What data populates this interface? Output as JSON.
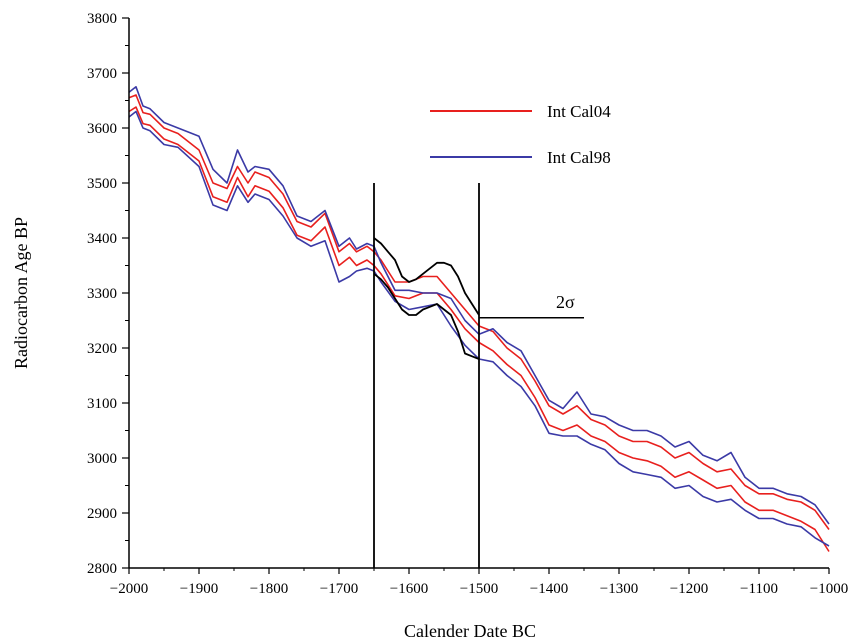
{
  "chart_data": {
    "type": "line",
    "title": "",
    "xlabel": "Calender Date BC",
    "ylabel": "Radiocarbon Age BP",
    "xlim": [
      -2000,
      -1000
    ],
    "ylim": [
      2800,
      3800
    ],
    "x_ticks": [
      "-2000",
      "-1900",
      "-1800",
      "-1700",
      "-1600",
      "-1500",
      "-1400",
      "-1300",
      "-1200",
      "-1100",
      "-1000"
    ],
    "y_ticks": [
      "2800",
      "2900",
      "3000",
      "3100",
      "3200",
      "3300",
      "3400",
      "3500",
      "3600",
      "3700",
      "3800"
    ],
    "legend_position": "top-center",
    "grid": false,
    "series": [
      {
        "name": "Int Cal04",
        "color": "#e8201e",
        "x": [
          -2000,
          -1990,
          -1980,
          -1970,
          -1950,
          -1930,
          -1900,
          -1880,
          -1860,
          -1845,
          -1830,
          -1820,
          -1800,
          -1780,
          -1760,
          -1740,
          -1720,
          -1700,
          -1685,
          -1675,
          -1660,
          -1650,
          -1640,
          -1620,
          -1600,
          -1580,
          -1560,
          -1540,
          -1520,
          -1500,
          -1480,
          -1460,
          -1440,
          -1420,
          -1400,
          -1380,
          -1360,
          -1340,
          -1320,
          -1300,
          -1280,
          -1260,
          -1240,
          -1220,
          -1200,
          -1180,
          -1160,
          -1140,
          -1120,
          -1100,
          -1080,
          -1060,
          -1040,
          -1020,
          -1000
        ],
        "upper": [
          3655,
          3660,
          3628,
          3625,
          3600,
          3590,
          3560,
          3500,
          3490,
          3530,
          3500,
          3520,
          3510,
          3480,
          3430,
          3420,
          3445,
          3375,
          3390,
          3375,
          3385,
          3375,
          3360,
          3320,
          3320,
          3330,
          3330,
          3300,
          3270,
          3240,
          3230,
          3200,
          3180,
          3140,
          3095,
          3080,
          3095,
          3070,
          3060,
          3040,
          3030,
          3030,
          3020,
          3000,
          3010,
          2990,
          2975,
          2980,
          2950,
          2935,
          2935,
          2925,
          2920,
          2905,
          2870
        ],
        "lower": [
          3630,
          3638,
          3608,
          3605,
          3580,
          3570,
          3540,
          3475,
          3465,
          3510,
          3475,
          3495,
          3485,
          3455,
          3405,
          3395,
          3420,
          3350,
          3365,
          3350,
          3360,
          3350,
          3335,
          3295,
          3290,
          3300,
          3300,
          3270,
          3235,
          3210,
          3195,
          3170,
          3150,
          3110,
          3060,
          3050,
          3060,
          3040,
          3030,
          3010,
          3000,
          2995,
          2985,
          2965,
          2975,
          2960,
          2945,
          2950,
          2920,
          2905,
          2905,
          2895,
          2885,
          2870,
          2830
        ]
      },
      {
        "name": "Int Cal98",
        "color": "#3b3aa6",
        "x": [
          -2000,
          -1990,
          -1980,
          -1970,
          -1950,
          -1930,
          -1900,
          -1880,
          -1860,
          -1845,
          -1830,
          -1820,
          -1800,
          -1780,
          -1760,
          -1740,
          -1720,
          -1700,
          -1685,
          -1675,
          -1660,
          -1650,
          -1640,
          -1620,
          -1600,
          -1580,
          -1560,
          -1540,
          -1520,
          -1500,
          -1480,
          -1460,
          -1440,
          -1420,
          -1400,
          -1380,
          -1360,
          -1340,
          -1320,
          -1300,
          -1280,
          -1260,
          -1240,
          -1220,
          -1200,
          -1180,
          -1160,
          -1140,
          -1120,
          -1100,
          -1080,
          -1060,
          -1040,
          -1020,
          -1000
        ],
        "upper": [
          3665,
          3675,
          3640,
          3635,
          3610,
          3600,
          3585,
          3525,
          3500,
          3560,
          3520,
          3530,
          3525,
          3495,
          3440,
          3430,
          3450,
          3385,
          3400,
          3380,
          3390,
          3385,
          3355,
          3305,
          3305,
          3300,
          3300,
          3290,
          3250,
          3225,
          3235,
          3210,
          3195,
          3150,
          3105,
          3090,
          3120,
          3080,
          3075,
          3060,
          3050,
          3050,
          3040,
          3020,
          3030,
          3005,
          2995,
          3010,
          2965,
          2945,
          2945,
          2935,
          2930,
          2915,
          2880
        ],
        "lower": [
          3620,
          3630,
          3600,
          3595,
          3570,
          3565,
          3530,
          3460,
          3450,
          3495,
          3465,
          3480,
          3470,
          3440,
          3400,
          3385,
          3395,
          3320,
          3330,
          3340,
          3345,
          3340,
          3320,
          3285,
          3270,
          3275,
          3280,
          3240,
          3205,
          3180,
          3175,
          3150,
          3130,
          3095,
          3045,
          3040,
          3040,
          3025,
          3015,
          2990,
          2975,
          2970,
          2965,
          2945,
          2950,
          2930,
          2920,
          2925,
          2905,
          2890,
          2890,
          2880,
          2875,
          2855,
          2840
        ]
      },
      {
        "name": "",
        "color": "#000000",
        "x": [
          -1650,
          -1640,
          -1630,
          -1620,
          -1610,
          -1600,
          -1590,
          -1580,
          -1570,
          -1560,
          -1550,
          -1540,
          -1530,
          -1520,
          -1510,
          -1500
        ],
        "upper": [
          3400,
          3390,
          3375,
          3360,
          3330,
          3320,
          3325,
          3335,
          3345,
          3355,
          3355,
          3350,
          3330,
          3300,
          3280,
          3260
        ],
        "lower": [
          3335,
          3325,
          3310,
          3290,
          3270,
          3260,
          3260,
          3270,
          3275,
          3280,
          3270,
          3260,
          3230,
          3190,
          3185,
          3180
        ]
      }
    ],
    "vertical_lines": [
      {
        "x": -1650,
        "y_top": 3500
      },
      {
        "x": -1500,
        "y_top": 3500
      }
    ],
    "annotations": [
      {
        "text": "2σ",
        "x0": -1500,
        "x1": -1350,
        "y": 3255
      }
    ]
  }
}
